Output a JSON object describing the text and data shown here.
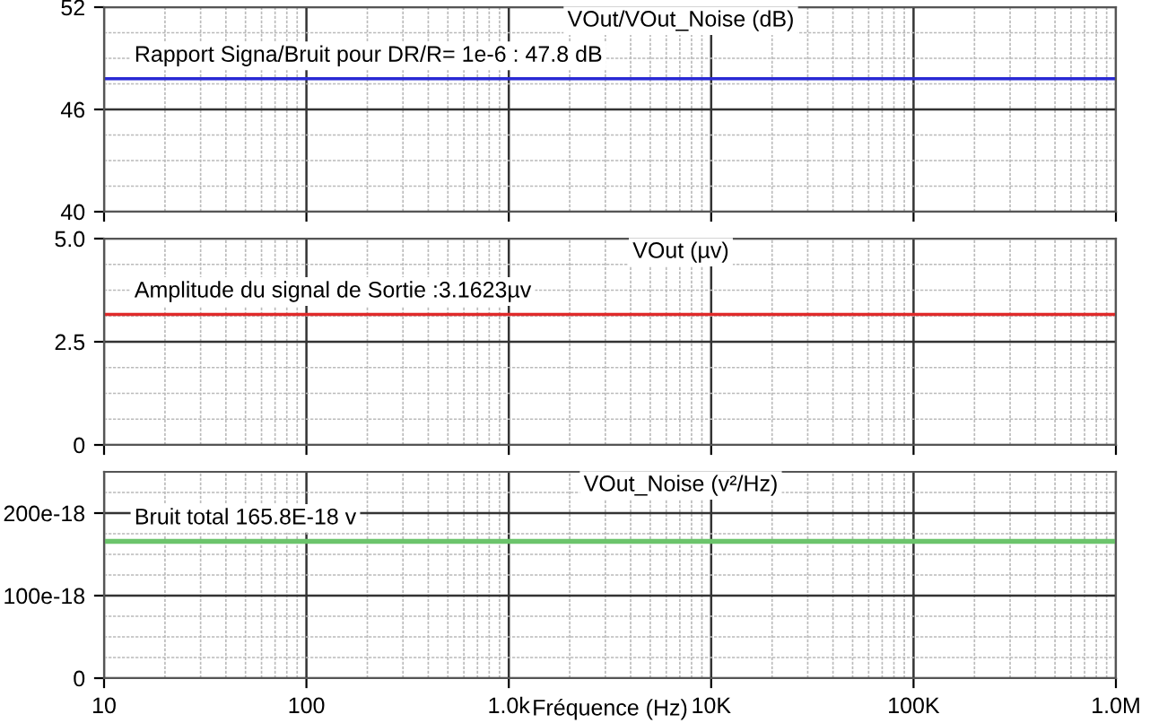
{
  "chart_data": [
    {
      "type": "line",
      "title": "VOut/VOut_Noise (dB)",
      "ref_lines": [
        {
          "axis": "y",
          "value": 47.8,
          "color": "#2a2ad4",
          "label": "Rapport Signa/Bruit pour DR/R= 1e-6 : 47.8 dB"
        }
      ],
      "xlim": [
        10,
        1000000
      ],
      "ylim": [
        40,
        52
      ],
      "yticks": [
        40,
        46,
        52
      ],
      "log": "x",
      "grid": true,
      "tick_labels": "y"
    },
    {
      "type": "line",
      "title": "VOut (µv)",
      "ref_lines": [
        {
          "axis": "y",
          "value": 3.1623,
          "color": "#e02a2a",
          "label": "Amplitude du signal de Sortie :3.1623µv"
        }
      ],
      "xlim": [
        10,
        1000000
      ],
      "ylim": [
        0,
        5
      ],
      "yticks": [
        0,
        2.5,
        {
          "value": 5,
          "label": "5.0"
        }
      ],
      "log": "x",
      "grid": true,
      "tick_labels": "y"
    },
    {
      "type": "line",
      "title": "VOut_Noise (v²/Hz)",
      "xlabel": "Fréquence (Hz)",
      "ref_lines": [
        {
          "axis": "y",
          "value": 1.658e-16,
          "color": "#6cc46c",
          "label": "Bruit total 165.8E-18 v"
        }
      ],
      "xlim": [
        10,
        1000000
      ],
      "xticks": [
        10,
        100,
        {
          "value": 1000,
          "label": "1.0k"
        },
        {
          "value": 10000,
          "label": "10K"
        },
        {
          "value": 100000,
          "label": "100K"
        },
        {
          "value": 1000000,
          "label": "1.0M"
        }
      ],
      "ylim": [
        0,
        2.5e-16
      ],
      "yticks": [
        0,
        {
          "value": 1e-16,
          "label": "100e-18"
        },
        {
          "value": 2e-16,
          "label": "200e-18"
        }
      ],
      "log": "x",
      "grid": true
    }
  ]
}
